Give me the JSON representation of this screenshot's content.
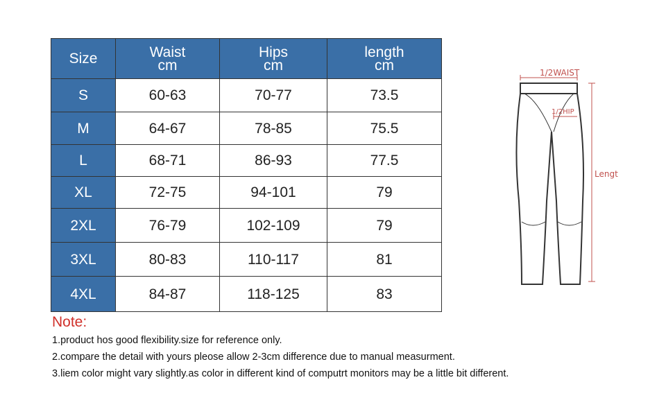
{
  "table": {
    "header": [
      {
        "name": "Size"
      },
      {
        "name": "Waist",
        "unit": "cm"
      },
      {
        "name": "Hips",
        "unit": "cm"
      },
      {
        "name": "length",
        "unit": "cm"
      }
    ],
    "rows": [
      [
        "S",
        "60-63",
        "70-77",
        "73.5"
      ],
      [
        "M",
        "64-67",
        "78-85",
        "75.5"
      ],
      [
        "L",
        "68-71",
        "86-93",
        "77.5"
      ],
      [
        "XL",
        "72-75",
        "94-101",
        "79"
      ],
      [
        "2XL",
        "76-79",
        "102-109",
        "79"
      ],
      [
        "3XL",
        "80-83",
        "110-117",
        "81"
      ],
      [
        "4XL",
        "84-87",
        "118-125",
        "83"
      ]
    ]
  },
  "note": {
    "title": "Note:",
    "lines": [
      "1.product hos good flexibility.size for reference only.",
      "2.compare the detail with yours pleose allow 2-3cm difference due to manual measurment.",
      "3.liem color might vary slightly.as color in different kind of computrt monitors may be a little bit different."
    ]
  },
  "diagram": {
    "waist_label": "1/2WAIST",
    "hip_label": "1/2HIP",
    "length_label": "Lengt"
  }
}
